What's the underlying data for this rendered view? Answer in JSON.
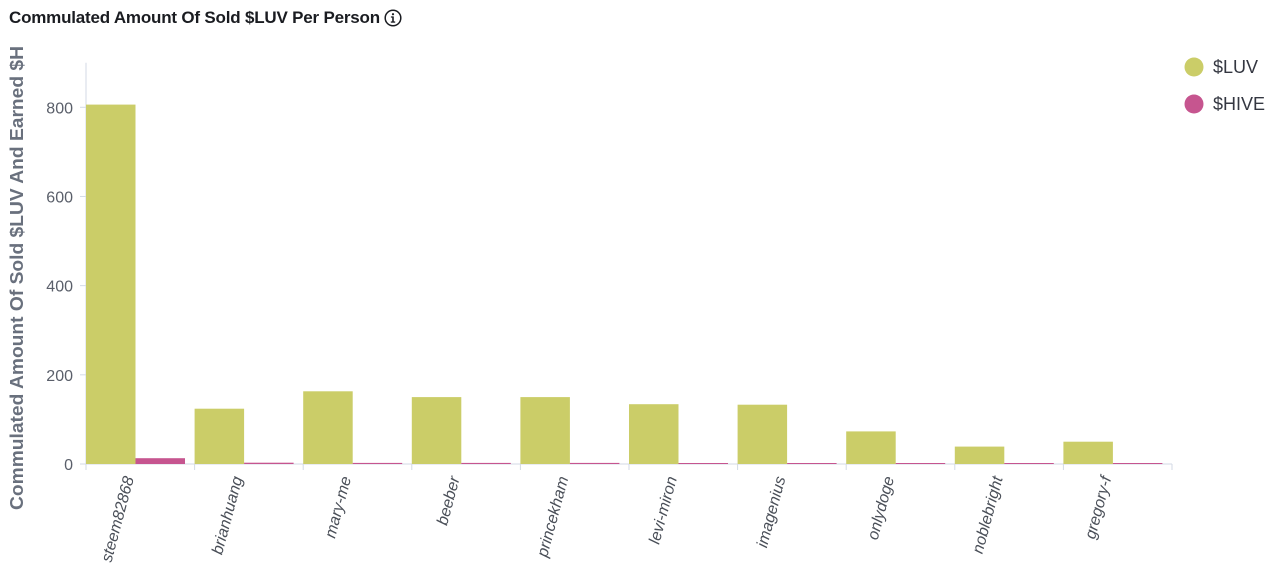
{
  "chart_data": {
    "type": "bar",
    "title": "Commulated Amount Of Sold $LUV Per Person",
    "ylabel": "Commulated Amount Of Sold $LUV And Earned $H",
    "xlabel": "",
    "ylim": [
      0,
      900
    ],
    "yticks": [
      0,
      200,
      400,
      600,
      800
    ],
    "categories": [
      "steem82868",
      "brianhuang",
      "mary-me",
      "beeber",
      "princekham",
      "levi-miron",
      "imagenius",
      "onlydoge",
      "noblebright",
      "gregory-f"
    ],
    "series": [
      {
        "name": "$LUV",
        "color": "#cbcd68",
        "values": [
          806,
          124,
          163,
          150,
          150,
          134,
          133,
          73,
          39,
          50
        ]
      },
      {
        "name": "$HIVE",
        "color": "#c6558f",
        "values": [
          13,
          3,
          2.5,
          2.5,
          2.5,
          2,
          2,
          1,
          0.5,
          0.5
        ]
      }
    ],
    "legend_position": "top-right",
    "grid": false
  },
  "icons": {
    "info": "info-icon"
  }
}
